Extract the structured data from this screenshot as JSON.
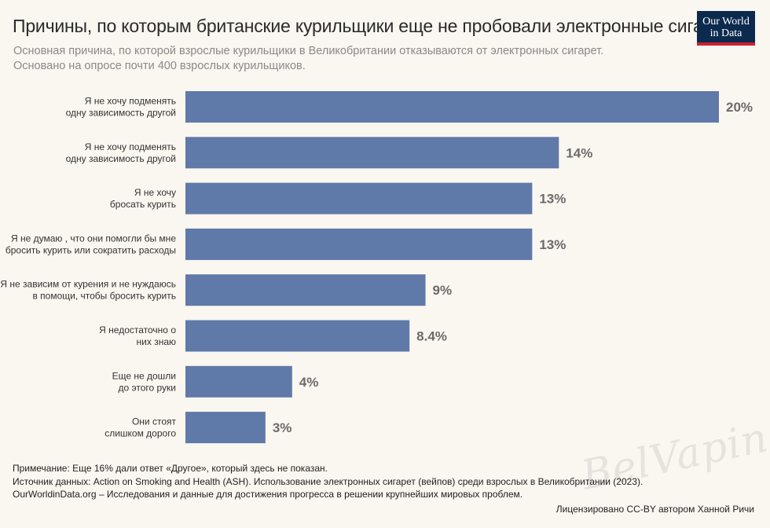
{
  "header": {
    "title": "Причины, по которым британские курильщики еще не пробовали электронные сигареты",
    "subtitle_line1": "Основная причина, по которой взрослые курильщики в Великобритании отказываются от электронных сигарет.",
    "subtitle_line2": "Основано на опросе почти 400 взрослых курильщиков.",
    "logo_line1": "Our World",
    "logo_line2": "in Data"
  },
  "chart_data": {
    "type": "bar",
    "orientation": "horizontal",
    "categories": [
      [
        "Я не хочу подменять",
        "одну зависимость другой"
      ],
      [
        "Я не хочу подменять",
        "одну зависимость другой"
      ],
      [
        "Я не хочу",
        "бросать курить"
      ],
      [
        "Я не думаю , что они помогли бы мне",
        "бросить курить или сократить расходы"
      ],
      [
        "Я не зависим от курения и не нуждаюсь",
        "в помощи, чтобы бросить курить"
      ],
      [
        "Я недостаточно о",
        "них знаю"
      ],
      [
        "Еще не дошли",
        "до этого руки"
      ],
      [
        "Они стоят",
        "слишком дорого"
      ]
    ],
    "values": [
      20,
      14,
      13,
      13,
      9,
      8.4,
      4,
      3
    ],
    "value_labels": [
      "20%",
      "14%",
      "13%",
      "13%",
      "9%",
      "8.4%",
      "4%",
      "3%"
    ],
    "xlim": [
      0,
      20
    ],
    "bar_color": "#5f79a8",
    "grid": false
  },
  "footer": {
    "note": "Примечание: Еще 16% дали ответ «Другое», который здесь не показан.",
    "source": "Источник данных: Action on Smoking and Health (ASH). Использование электронных сигарет (вейпов) среди взрослых в Великобритании (2023).",
    "site": "OurWorldinData.org – Исследования и данные для достижения прогресса в решении крупнейших мировых проблем.",
    "license": "Лицензировано CC-BY автором Ханной Ричи"
  },
  "watermark": "BelVaping"
}
